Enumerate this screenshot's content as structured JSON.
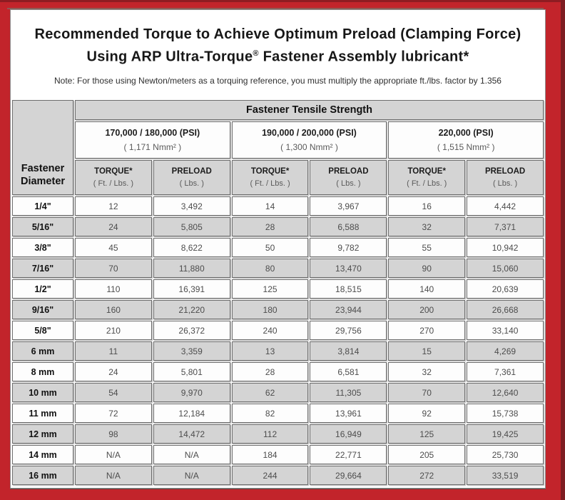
{
  "colors": {
    "frame_red": "#C2242B",
    "frame_dark_edge": "#7E1D22",
    "shaded_cell": "#D4D4D4",
    "cell_border": "#6E6E6E"
  },
  "title": {
    "line1": "Recommended Torque to Achieve Optimum Preload (Clamping Force)",
    "line2_before_reg": "Using ARP Ultra-Torque",
    "reg_mark": "®",
    "line2_after_reg": " Fastener Assembly lubricant*",
    "note": "Note: For those using Newton/meters as a torquing reference, you must multiply the appropriate ft./lbs. factor by 1.356"
  },
  "table": {
    "corner_header": "Fastener Diameter",
    "tensile_header": "Fastener Tensile Strength",
    "strength_groups": [
      {
        "psi": "170,000 / 180,000 (PSI)",
        "nmm": "( 1,171 Nmm² )"
      },
      {
        "psi": "190,000 / 200,000 (PSI)",
        "nmm": "( 1,300 Nmm² )"
      },
      {
        "psi": "220,000 (PSI)",
        "nmm": "( 1,515 Nmm² )"
      }
    ],
    "col_torque": {
      "label": "TORQUE*",
      "sub": "( Ft. / Lbs. )"
    },
    "col_preload": {
      "label": "PRELOAD",
      "sub": "( Lbs. )"
    },
    "rows": [
      {
        "d": "1/4\"",
        "v": [
          "12",
          "3,492",
          "14",
          "3,967",
          "16",
          "4,442"
        ]
      },
      {
        "d": "5/16\"",
        "v": [
          "24",
          "5,805",
          "28",
          "6,588",
          "32",
          "7,371"
        ]
      },
      {
        "d": "3/8\"",
        "v": [
          "45",
          "8,622",
          "50",
          "9,782",
          "55",
          "10,942"
        ]
      },
      {
        "d": "7/16\"",
        "v": [
          "70",
          "11,880",
          "80",
          "13,470",
          "90",
          "15,060"
        ]
      },
      {
        "d": "1/2\"",
        "v": [
          "110",
          "16,391",
          "125",
          "18,515",
          "140",
          "20,639"
        ]
      },
      {
        "d": "9/16\"",
        "v": [
          "160",
          "21,220",
          "180",
          "23,944",
          "200",
          "26,668"
        ]
      },
      {
        "d": "5/8\"",
        "v": [
          "210",
          "26,372",
          "240",
          "29,756",
          "270",
          "33,140"
        ]
      },
      {
        "d": "6 mm",
        "v": [
          "11",
          "3,359",
          "13",
          "3,814",
          "15",
          "4,269"
        ]
      },
      {
        "d": "8 mm",
        "v": [
          "24",
          "5,801",
          "28",
          "6,581",
          "32",
          "7,361"
        ]
      },
      {
        "d": "10 mm",
        "v": [
          "54",
          "9,970",
          "62",
          "11,305",
          "70",
          "12,640"
        ]
      },
      {
        "d": "11 mm",
        "v": [
          "72",
          "12,184",
          "82",
          "13,961",
          "92",
          "15,738"
        ]
      },
      {
        "d": "12 mm",
        "v": [
          "98",
          "14,472",
          "112",
          "16,949",
          "125",
          "19,425"
        ]
      },
      {
        "d": "14 mm",
        "v": [
          "N/A",
          "N/A",
          "184",
          "22,771",
          "205",
          "25,730"
        ]
      },
      {
        "d": "16 mm",
        "v": [
          "N/A",
          "N/A",
          "244",
          "29,664",
          "272",
          "33,519"
        ]
      }
    ]
  }
}
